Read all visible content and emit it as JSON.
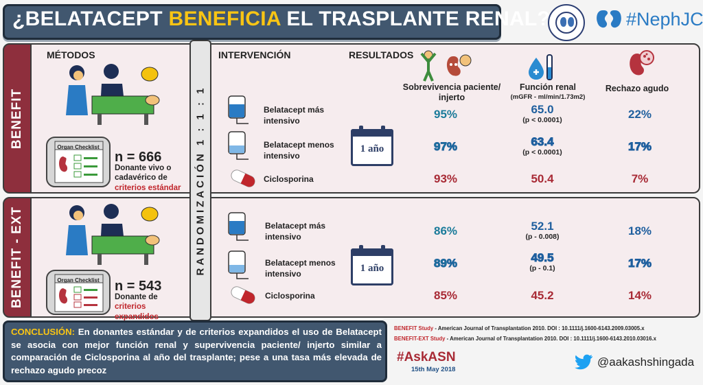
{
  "title": {
    "pre": "¿BELATACEPT ",
    "highlight": "BENEFICIA",
    "post": " EL TRASPLANTE RENAL?"
  },
  "logos": {
    "nephjc": "#NephJC",
    "nephro_icon": "nephrology-seal-icon",
    "kidney_icon": "kidneys-icon"
  },
  "headers": {
    "metodos": "MÉTODOS",
    "intervencion": "INTERVENCIÓN",
    "resultados": "RESULTADOS",
    "col_survival": "Sobrevivencia paciente/ injerto",
    "col_renal": "Función renal",
    "col_renal_sub": "(mGFR - ml/min/1.73m2)",
    "col_rejection": "Rechazo agudo"
  },
  "randomization": "RANDOMIZACIÓN 1 : 1 : 1",
  "studies": [
    {
      "band": "BENEFIT",
      "checklist": "Organ Checklist",
      "n": "n = 666",
      "desc_line1": "Donante vivo o",
      "desc_line2": "cadavérico de",
      "desc_red": "criterios estándar",
      "calendar": "1 año",
      "arms": [
        {
          "label": "Belatacept más intensivo",
          "survival": "95%",
          "renal": "65.0",
          "p": "(p < 0.0001)",
          "rejection": "22%"
        },
        {
          "label": "Belatacept menos intensivo",
          "survival": "97%",
          "renal": "63.4",
          "p": "(p < 0.0001)",
          "rejection": "17%"
        },
        {
          "label": "Ciclosporina",
          "survival": "93%",
          "renal": "50.4",
          "p": "",
          "rejection": "7%"
        }
      ]
    },
    {
      "band": "BENEFIT - EXT",
      "checklist": "Organ Checklist",
      "n": "n = 543",
      "desc_line1": "Donante de",
      "desc_red": "criterios expandidos",
      "calendar": "1 año",
      "arms": [
        {
          "label": "Belatacept más intensivo",
          "survival": "86%",
          "renal": "52.1",
          "p": "(p - 0.008)",
          "rejection": "18%"
        },
        {
          "label": "Belatacept menos intensivo",
          "survival": "89%",
          "renal": "49.5",
          "p": "(p - 0.1)",
          "rejection": "17%"
        },
        {
          "label": "Ciclosporina",
          "survival": "85%",
          "renal": "45.2",
          "p": "",
          "rejection": "14%"
        }
      ]
    }
  ],
  "conclusion": {
    "lead": "CONCLUSIÓN:",
    "text": " En donantes estándar y de criterios expandidos el uso de Belatacept se asocia con mejor función renal y supervivencia paciente/ injerto similar a comparación de Ciclosporina al año del trasplante; pese a una tasa más elevada de rechazo agudo precoz"
  },
  "references": [
    {
      "label": "BENEFIT Study",
      "text": " - American Journal of Transplantation 2010. DOI : 10.1111/j.1600-6143.2009.03005.x"
    },
    {
      "label": "BENEFIT-EXT Study",
      "text": " - American Journal of Transplantation 2010. DOI : 10.1111/j.1600-6143.2010.03016.x"
    }
  ],
  "footer": {
    "hashtag": "#AskASN",
    "date": "15th May 2018",
    "twitter": "@aakashshingada"
  },
  "colors": {
    "title_bg": "#41576f",
    "highlight": "#f9c514",
    "band": "#8e2f3d",
    "red": "#a82a35",
    "blue": "#1f5f9e"
  }
}
